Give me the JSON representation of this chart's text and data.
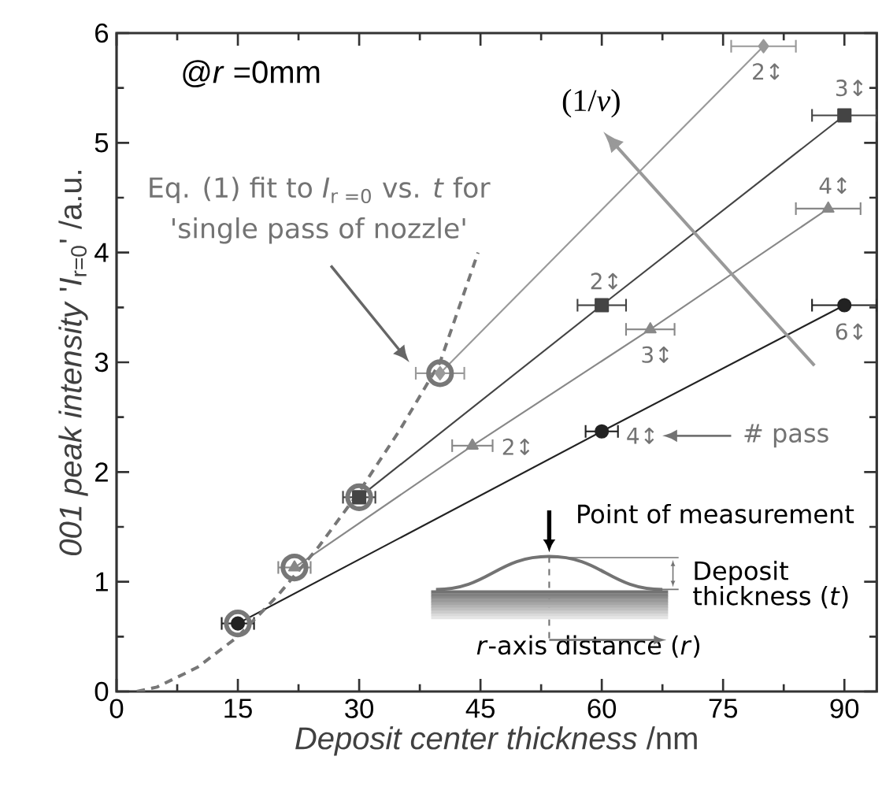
{
  "chart_data": {
    "type": "line",
    "xlabel": "*Deposit center thickness* /nm",
    "ylabel": "*001 peak intensity* '*I*$_{r=0}$' /a.u.",
    "xlim": [
      0,
      94
    ],
    "ylim": [
      0,
      6
    ],
    "xticks": [
      0,
      15,
      30,
      45,
      60,
      75,
      90
    ],
    "yticks": [
      0,
      1,
      2,
      3,
      4,
      5,
      6
    ],
    "grid": false,
    "series": [
      {
        "type": "line",
        "marker": "circle",
        "color": "#222222",
        "x": [
          15,
          60,
          90
        ],
        "values": [
          0.62,
          2.37,
          3.52
        ],
        "xerrors": [
          2,
          2,
          4
        ]
      },
      {
        "type": "line",
        "marker": "triangle",
        "color": "#888888",
        "x": [
          22,
          44,
          66,
          88
        ],
        "values": [
          1.13,
          2.24,
          3.3,
          4.4
        ],
        "xerrors": [
          2,
          2.5,
          3,
          4
        ]
      },
      {
        "type": "line",
        "marker": "square",
        "color": "#444444",
        "x": [
          30,
          60,
          90
        ],
        "values": [
          1.77,
          3.52,
          5.25
        ],
        "xerrors": [
          2,
          3,
          4
        ]
      },
      {
        "type": "line",
        "marker": "diamond",
        "color": "#999999",
        "x": [
          40,
          80
        ],
        "values": [
          2.9,
          5.88
        ],
        "xerrors": [
          3,
          4
        ]
      },
      {
        "type": "scatter",
        "marker": "circle",
        "color": "#777777",
        "x": [
          15,
          22,
          30,
          40
        ],
        "values": [
          0.62,
          1.13,
          1.77,
          2.9
        ]
      },
      {
        "type": "line",
        "marker": "none",
        "line_style": "dashed",
        "color": "#777777",
        "x": [
          2.5,
          5,
          10,
          15,
          20,
          25,
          30,
          35,
          40,
          44.7
        ],
        "values": [
          0,
          0.04,
          0.22,
          0.5,
          0.88,
          1.32,
          1.82,
          2.38,
          3.0,
          4.0
        ]
      }
    ],
    "annotations": [
      "2↕",
      "3↕",
      "4↕",
      "6↕",
      "2↕",
      "3↕",
      "2↕",
      "4↕",
      "@*r* =0mm",
      "Eq. (1) fit to *I*$_{r =0}$ vs. *t* for",
      "'single pass of nozzle'",
      "(1/*v*)",
      "# pass",
      "Point of measurement",
      "Deposit",
      "thickness (*t*)",
      "*r*-axis distance (*r*)"
    ]
  }
}
